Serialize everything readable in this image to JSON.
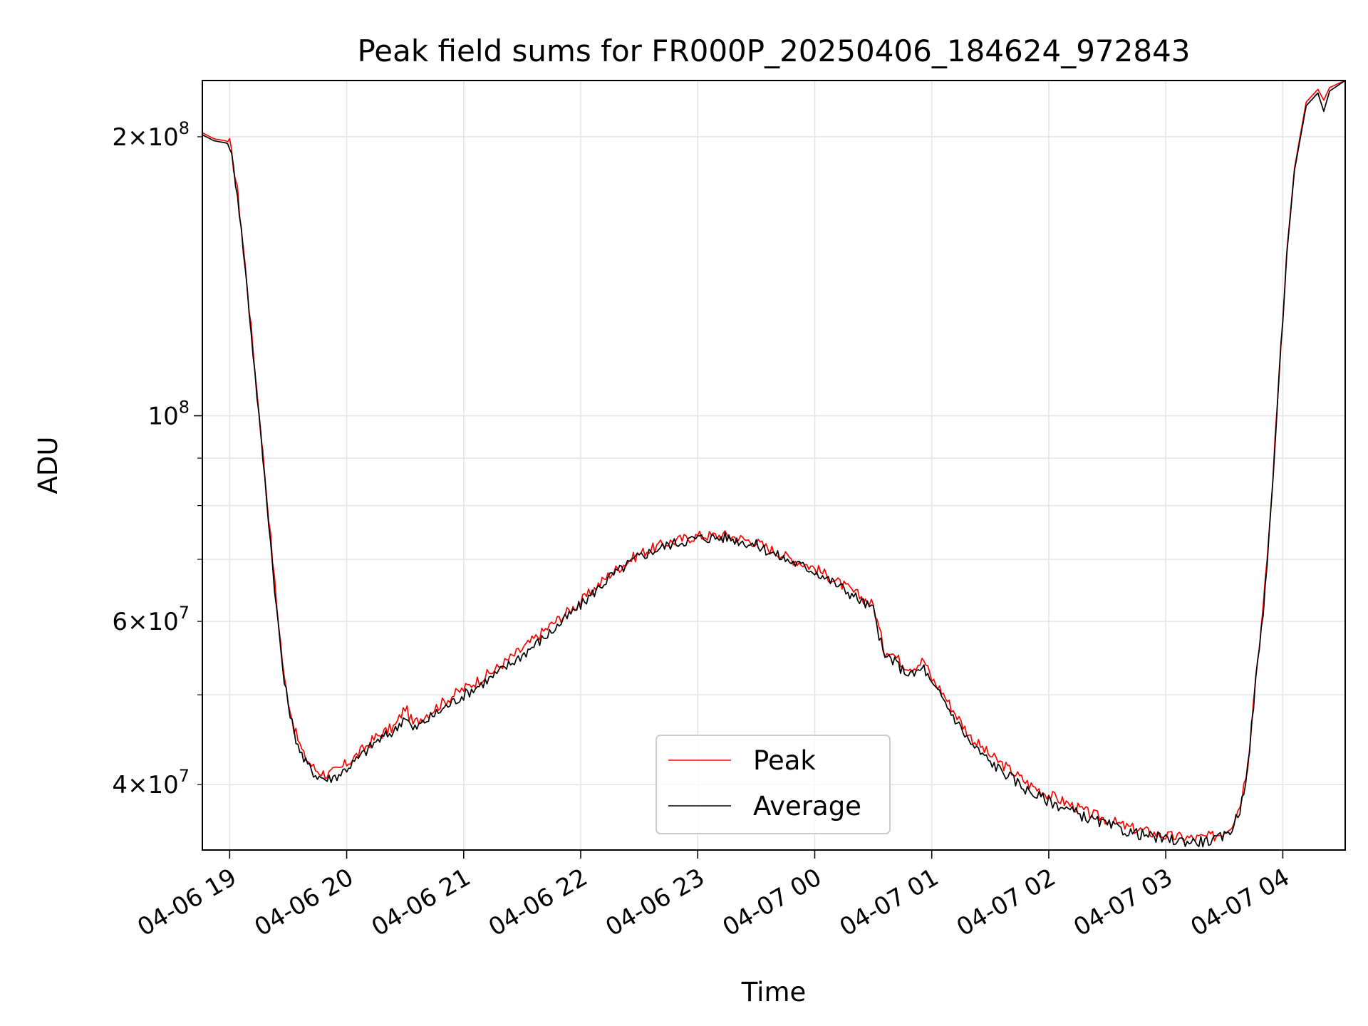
{
  "chart_data": {
    "type": "line",
    "title": "Peak field sums for FR000P_20250406_184624_972843",
    "xlabel": "Time",
    "ylabel": "ADU",
    "yscale": "log",
    "xlim": [
      "2025-04-06 18:46",
      "2025-04-07 04:32"
    ],
    "ylim": [
      34000000,
      230000000
    ],
    "grid": true,
    "legend_position": "lower-center",
    "x_ticks": [
      "04-06 19",
      "04-06 20",
      "04-06 21",
      "04-06 22",
      "04-06 23",
      "04-07 00",
      "04-07 01",
      "04-07 02",
      "04-07 03",
      "04-07 04"
    ],
    "y_major_ticks": [
      {
        "value": 100000000,
        "label": "10^8"
      }
    ],
    "y_minor_labeled_ticks": [
      {
        "value": 40000000,
        "label": "4 × 10^7"
      },
      {
        "value": 60000000,
        "label": "6 × 10^7"
      },
      {
        "value": 200000000,
        "label": "2 × 10^8"
      }
    ],
    "y_minor_ticks": [
      50000000,
      70000000,
      80000000,
      90000000
    ],
    "series": [
      {
        "name": "Peak",
        "color": "#ff0000",
        "x": [
          "2025-04-06 18:46",
          "2025-04-06 18:52",
          "2025-04-06 18:58",
          "2025-04-06 19:00",
          "2025-04-06 19:04",
          "2025-04-06 19:08",
          "2025-04-06 19:12",
          "2025-04-06 19:16",
          "2025-04-06 19:20",
          "2025-04-06 19:24",
          "2025-04-06 19:28",
          "2025-04-06 19:33",
          "2025-04-06 19:38",
          "2025-04-06 19:44",
          "2025-04-06 19:50",
          "2025-04-06 19:56",
          "2025-04-06 20:05",
          "2025-04-06 20:15",
          "2025-04-06 20:25",
          "2025-04-06 20:30",
          "2025-04-06 20:34",
          "2025-04-06 20:40",
          "2025-04-06 20:55",
          "2025-04-06 21:15",
          "2025-04-06 21:30",
          "2025-04-06 21:45",
          "2025-04-06 22:00",
          "2025-04-06 22:15",
          "2025-04-06 22:30",
          "2025-04-06 22:45",
          "2025-04-06 23:00",
          "2025-04-06 23:15",
          "2025-04-06 23:30",
          "2025-04-06 23:45",
          "2025-04-07 00:00",
          "2025-04-07 00:15",
          "2025-04-07 00:30",
          "2025-04-07 00:36",
          "2025-04-07 00:38",
          "2025-04-07 00:45",
          "2025-04-07 00:50",
          "2025-04-07 00:56",
          "2025-04-07 01:00",
          "2025-04-07 01:05",
          "2025-04-07 01:10",
          "2025-04-07 01:20",
          "2025-04-07 01:30",
          "2025-04-07 01:40",
          "2025-04-07 01:50",
          "2025-04-07 02:00",
          "2025-04-07 02:20",
          "2025-04-07 02:40",
          "2025-04-07 03:00",
          "2025-04-07 03:15",
          "2025-04-07 03:25",
          "2025-04-07 03:30",
          "2025-04-07 03:34",
          "2025-04-07 03:38",
          "2025-04-07 03:42",
          "2025-04-07 03:46",
          "2025-04-07 03:50",
          "2025-04-07 03:54",
          "2025-04-07 03:58",
          "2025-04-07 04:02",
          "2025-04-07 04:06",
          "2025-04-07 04:12",
          "2025-04-07 04:18",
          "2025-04-07 04:21",
          "2025-04-07 04:24",
          "2025-04-07 04:28",
          "2025-04-07 04:32"
        ],
        "values": [
          202000000,
          199000000,
          198000000,
          197000000,
          175000000,
          145000000,
          118000000,
          96000000,
          78000000,
          63000000,
          52000000,
          46000000,
          43000000,
          41500000,
          41000000,
          41500000,
          43000000,
          45000000,
          46300000,
          48500000,
          46500000,
          47500000,
          50000000,
          53000000,
          56000000,
          59500000,
          63000000,
          67500000,
          71000000,
          73000000,
          74200000,
          74300000,
          73000000,
          70500000,
          68500000,
          65500000,
          62500000,
          55500000,
          56000000,
          54000000,
          53500000,
          54500000,
          52000000,
          50500000,
          48500000,
          45000000,
          43000000,
          41500000,
          40000000,
          39000000,
          37300000,
          36000000,
          35200000,
          35000000,
          35200000,
          35600000,
          36300000,
          38000000,
          42000000,
          52000000,
          62000000,
          80000000,
          110000000,
          150000000,
          185000000,
          218000000,
          225000000,
          219000000,
          226000000,
          228000000,
          230000000
        ]
      },
      {
        "name": "Average",
        "color": "#000000",
        "x": [
          "2025-04-06 18:46",
          "2025-04-06 18:52",
          "2025-04-06 18:58",
          "2025-04-06 19:00",
          "2025-04-06 19:04",
          "2025-04-06 19:08",
          "2025-04-06 19:12",
          "2025-04-06 19:16",
          "2025-04-06 19:20",
          "2025-04-06 19:24",
          "2025-04-06 19:28",
          "2025-04-06 19:33",
          "2025-04-06 19:38",
          "2025-04-06 19:44",
          "2025-04-06 19:50",
          "2025-04-06 19:56",
          "2025-04-06 20:05",
          "2025-04-06 20:15",
          "2025-04-06 20:25",
          "2025-04-06 20:30",
          "2025-04-06 20:34",
          "2025-04-06 20:40",
          "2025-04-06 20:55",
          "2025-04-06 21:15",
          "2025-04-06 21:30",
          "2025-04-06 21:45",
          "2025-04-06 22:00",
          "2025-04-06 22:15",
          "2025-04-06 22:30",
          "2025-04-06 22:45",
          "2025-04-06 23:00",
          "2025-04-06 23:15",
          "2025-04-06 23:30",
          "2025-04-06 23:45",
          "2025-04-07 00:00",
          "2025-04-07 00:15",
          "2025-04-07 00:30",
          "2025-04-07 00:36",
          "2025-04-07 00:38",
          "2025-04-07 00:45",
          "2025-04-07 00:50",
          "2025-04-07 00:56",
          "2025-04-07 01:00",
          "2025-04-07 01:05",
          "2025-04-07 01:10",
          "2025-04-07 01:20",
          "2025-04-07 01:30",
          "2025-04-07 01:40",
          "2025-04-07 01:50",
          "2025-04-07 02:00",
          "2025-04-07 02:20",
          "2025-04-07 02:40",
          "2025-04-07 03:00",
          "2025-04-07 03:15",
          "2025-04-07 03:25",
          "2025-04-07 03:30",
          "2025-04-07 03:34",
          "2025-04-07 03:38",
          "2025-04-07 03:42",
          "2025-04-07 03:46",
          "2025-04-07 03:50",
          "2025-04-07 03:54",
          "2025-04-07 03:58",
          "2025-04-07 04:02",
          "2025-04-07 04:06",
          "2025-04-07 04:12",
          "2025-04-07 04:18",
          "2025-04-07 04:21",
          "2025-04-07 04:24",
          "2025-04-07 04:28",
          "2025-04-07 04:32"
        ],
        "values": [
          201000000,
          198000000,
          197000000,
          196000000,
          174000000,
          144000000,
          117000000,
          95000000,
          77000000,
          62000000,
          51500000,
          45500000,
          42500000,
          41000000,
          40500000,
          41000000,
          42500000,
          44500000,
          45800000,
          47500000,
          45800000,
          46800000,
          49200000,
          52300000,
          55200000,
          58500000,
          62500000,
          67000000,
          70500000,
          72600000,
          73800000,
          73900000,
          72500000,
          70000000,
          68000000,
          65000000,
          61800000,
          54500000,
          55000000,
          53200000,
          52500000,
          53500000,
          51200000,
          49800000,
          47800000,
          44300000,
          42300000,
          40800000,
          39300000,
          38400000,
          36800000,
          35600000,
          34900000,
          34700000,
          34800000,
          35200000,
          35900000,
          37600000,
          41600000,
          51500000,
          61500000,
          79500000,
          109000000,
          149000000,
          184000000,
          216000000,
          223000000,
          213000000,
          224000000,
          227000000,
          230000000
        ]
      }
    ]
  }
}
